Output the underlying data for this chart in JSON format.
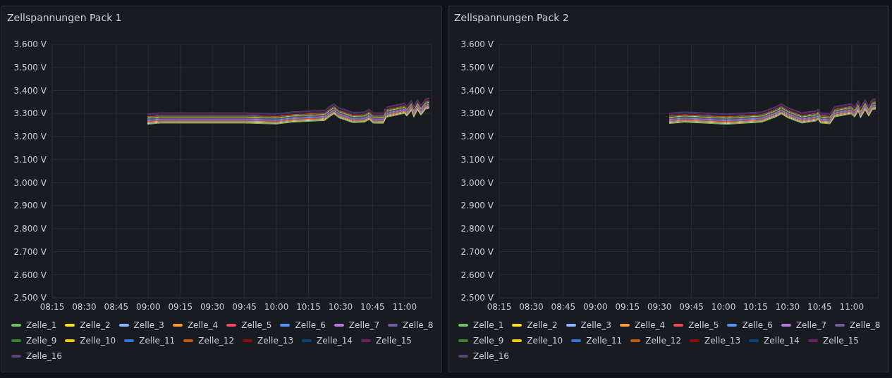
{
  "chart_data": [
    {
      "type": "line",
      "title": "Zellspannungen Pack 1",
      "grid": true,
      "legend": "bottom",
      "marker": "none",
      "line_style": "solid",
      "xlim": [
        8.25,
        11.21
      ],
      "ylim": [
        2.5,
        3.6
      ],
      "xticks": [
        {
          "value": 8.25,
          "label": "08:15"
        },
        {
          "value": 8.5,
          "label": "08:30"
        },
        {
          "value": 8.75,
          "label": "08:45"
        },
        {
          "value": 9,
          "label": "09:00"
        },
        {
          "value": 9.25,
          "label": "09:15"
        },
        {
          "value": 9.5,
          "label": "09:30"
        },
        {
          "value": 9.75,
          "label": "09:45"
        },
        {
          "value": 10,
          "label": "10:00"
        },
        {
          "value": 10.25,
          "label": "10:15"
        },
        {
          "value": 10.5,
          "label": "10:30"
        },
        {
          "value": 10.75,
          "label": "10:45"
        },
        {
          "value": 11,
          "label": "11:00"
        }
      ],
      "yticks": [
        {
          "value": 2.5,
          "label": "2.500 V"
        },
        {
          "value": 2.6,
          "label": "2.600 V"
        },
        {
          "value": 2.7,
          "label": "2.700 V"
        },
        {
          "value": 2.8,
          "label": "2.800 V"
        },
        {
          "value": 2.9,
          "label": "2.900 V"
        },
        {
          "value": 3.0,
          "label": "3.000 V"
        },
        {
          "value": 3.1,
          "label": "3.100 V"
        },
        {
          "value": 3.2,
          "label": "3.200 V"
        },
        {
          "value": 3.3,
          "label": "3.300 V"
        },
        {
          "value": 3.4,
          "label": "3.400 V"
        },
        {
          "value": 3.5,
          "label": "3.500 V"
        },
        {
          "value": 3.6,
          "label": "3.600 V"
        }
      ],
      "x": [
        8.993,
        9.094,
        9.754,
        10.001,
        10.12,
        10.376,
        10.413,
        10.449,
        10.486,
        10.596,
        10.687,
        10.724,
        10.752,
        10.834,
        10.853,
        10.862,
        10.999,
        11.017,
        11.054,
        11.072,
        11.1,
        11.127,
        11.164,
        11.192
      ],
      "series": [
        {
          "name": "Zelle_1",
          "color": "#73bf69",
          "values": [
            3.253,
            3.258,
            3.258,
            3.254,
            3.262,
            3.269,
            3.285,
            3.298,
            3.281,
            3.26,
            3.262,
            3.274,
            3.258,
            3.257,
            3.279,
            3.284,
            3.3,
            3.288,
            3.313,
            3.284,
            3.316,
            3.292,
            3.319,
            3.322
          ]
        },
        {
          "name": "Zelle_2",
          "color": "#fade2a",
          "values": [
            3.256,
            3.261,
            3.261,
            3.257,
            3.265,
            3.272,
            3.288,
            3.301,
            3.284,
            3.263,
            3.265,
            3.277,
            3.261,
            3.26,
            3.282,
            3.287,
            3.303,
            3.291,
            3.316,
            3.287,
            3.319,
            3.295,
            3.322,
            3.325
          ]
        },
        {
          "name": "Zelle_3",
          "color": "#8ab8ff",
          "values": [
            3.259,
            3.264,
            3.264,
            3.26,
            3.268,
            3.275,
            3.291,
            3.304,
            3.287,
            3.266,
            3.268,
            3.28,
            3.264,
            3.263,
            3.285,
            3.29,
            3.306,
            3.294,
            3.319,
            3.29,
            3.322,
            3.298,
            3.325,
            3.328
          ]
        },
        {
          "name": "Zelle_4",
          "color": "#ff9830",
          "values": [
            3.262,
            3.267,
            3.267,
            3.263,
            3.271,
            3.278,
            3.294,
            3.307,
            3.29,
            3.269,
            3.271,
            3.283,
            3.267,
            3.266,
            3.288,
            3.293,
            3.309,
            3.297,
            3.322,
            3.293,
            3.325,
            3.301,
            3.328,
            3.331
          ]
        },
        {
          "name": "Zelle_5",
          "color": "#f2495c",
          "values": [
            3.265,
            3.27,
            3.27,
            3.266,
            3.274,
            3.281,
            3.297,
            3.31,
            3.293,
            3.272,
            3.274,
            3.286,
            3.27,
            3.269,
            3.291,
            3.296,
            3.312,
            3.3,
            3.325,
            3.296,
            3.328,
            3.304,
            3.331,
            3.334
          ]
        },
        {
          "name": "Zelle_6",
          "color": "#5794f2",
          "values": [
            3.268,
            3.273,
            3.273,
            3.269,
            3.277,
            3.284,
            3.3,
            3.313,
            3.296,
            3.275,
            3.277,
            3.289,
            3.273,
            3.272,
            3.294,
            3.299,
            3.315,
            3.303,
            3.328,
            3.299,
            3.331,
            3.307,
            3.334,
            3.337
          ]
        },
        {
          "name": "Zelle_7",
          "color": "#b877d9",
          "values": [
            3.271,
            3.276,
            3.276,
            3.272,
            3.28,
            3.287,
            3.303,
            3.316,
            3.299,
            3.278,
            3.28,
            3.292,
            3.276,
            3.275,
            3.297,
            3.302,
            3.318,
            3.306,
            3.331,
            3.302,
            3.334,
            3.31,
            3.337,
            3.34
          ]
        },
        {
          "name": "Zelle_8",
          "color": "#705da0",
          "values": [
            3.274,
            3.279,
            3.279,
            3.275,
            3.283,
            3.29,
            3.306,
            3.319,
            3.302,
            3.281,
            3.283,
            3.295,
            3.279,
            3.278,
            3.3,
            3.305,
            3.321,
            3.309,
            3.334,
            3.305,
            3.337,
            3.313,
            3.34,
            3.343
          ]
        },
        {
          "name": "Zelle_9",
          "color": "#37872d",
          "values": [
            3.277,
            3.282,
            3.282,
            3.278,
            3.286,
            3.293,
            3.309,
            3.322,
            3.305,
            3.284,
            3.286,
            3.298,
            3.282,
            3.281,
            3.303,
            3.308,
            3.324,
            3.312,
            3.337,
            3.308,
            3.34,
            3.316,
            3.343,
            3.346
          ]
        },
        {
          "name": "Zelle_10",
          "color": "#f2cc0c",
          "values": [
            3.28,
            3.285,
            3.285,
            3.281,
            3.289,
            3.296,
            3.312,
            3.325,
            3.308,
            3.287,
            3.289,
            3.301,
            3.285,
            3.284,
            3.306,
            3.311,
            3.327,
            3.315,
            3.34,
            3.311,
            3.343,
            3.319,
            3.346,
            3.349
          ]
        },
        {
          "name": "Zelle_11",
          "color": "#3274d9",
          "values": [
            3.283,
            3.288,
            3.288,
            3.284,
            3.292,
            3.299,
            3.315,
            3.328,
            3.311,
            3.29,
            3.292,
            3.304,
            3.288,
            3.287,
            3.309,
            3.314,
            3.33,
            3.318,
            3.343,
            3.314,
            3.346,
            3.322,
            3.349,
            3.352
          ]
        },
        {
          "name": "Zelle_12",
          "color": "#c15c17",
          "values": [
            3.286,
            3.291,
            3.291,
            3.287,
            3.295,
            3.302,
            3.318,
            3.331,
            3.314,
            3.293,
            3.295,
            3.307,
            3.291,
            3.29,
            3.312,
            3.317,
            3.333,
            3.321,
            3.346,
            3.317,
            3.349,
            3.325,
            3.352,
            3.355
          ]
        },
        {
          "name": "Zelle_13",
          "color": "#890f02",
          "values": [
            3.289,
            3.294,
            3.294,
            3.29,
            3.298,
            3.305,
            3.321,
            3.334,
            3.317,
            3.296,
            3.298,
            3.31,
            3.294,
            3.293,
            3.315,
            3.32,
            3.336,
            3.324,
            3.349,
            3.32,
            3.352,
            3.328,
            3.355,
            3.358
          ]
        },
        {
          "name": "Zelle_14",
          "color": "#0a437c",
          "values": [
            3.292,
            3.297,
            3.297,
            3.293,
            3.301,
            3.308,
            3.324,
            3.337,
            3.32,
            3.299,
            3.301,
            3.313,
            3.297,
            3.296,
            3.318,
            3.323,
            3.339,
            3.327,
            3.352,
            3.323,
            3.355,
            3.331,
            3.358,
            3.361
          ]
        },
        {
          "name": "Zelle_15",
          "color": "#6d1f62",
          "values": [
            3.295,
            3.3,
            3.3,
            3.296,
            3.304,
            3.311,
            3.327,
            3.34,
            3.323,
            3.302,
            3.304,
            3.316,
            3.3,
            3.299,
            3.321,
            3.326,
            3.342,
            3.33,
            3.355,
            3.326,
            3.358,
            3.334,
            3.361,
            3.364
          ]
        },
        {
          "name": "Zelle_16",
          "color": "#584477",
          "values": [
            3.298,
            3.303,
            3.303,
            3.299,
            3.307,
            3.314,
            3.33,
            3.343,
            3.326,
            3.305,
            3.307,
            3.319,
            3.303,
            3.302,
            3.324,
            3.329,
            3.345,
            3.333,
            3.358,
            3.329,
            3.361,
            3.337,
            3.364,
            3.367
          ]
        }
      ]
    },
    {
      "type": "line",
      "title": "Zellspannungen Pack 2",
      "grid": true,
      "legend": "bottom",
      "marker": "none",
      "line_style": "solid",
      "xlim": [
        8.25,
        11.21
      ],
      "ylim": [
        2.5,
        3.6
      ],
      "xticks": [
        {
          "value": 8.25,
          "label": "08:15"
        },
        {
          "value": 8.5,
          "label": "08:30"
        },
        {
          "value": 8.75,
          "label": "08:45"
        },
        {
          "value": 9,
          "label": "09:00"
        },
        {
          "value": 9.25,
          "label": "09:15"
        },
        {
          "value": 9.5,
          "label": "09:30"
        },
        {
          "value": 9.75,
          "label": "09:45"
        },
        {
          "value": 10,
          "label": "10:00"
        },
        {
          "value": 10.25,
          "label": "10:15"
        },
        {
          "value": 10.5,
          "label": "10:30"
        },
        {
          "value": 10.75,
          "label": "10:45"
        },
        {
          "value": 11,
          "label": "11:00"
        }
      ],
      "yticks": [
        {
          "value": 2.5,
          "label": "2.500 V"
        },
        {
          "value": 2.6,
          "label": "2.600 V"
        },
        {
          "value": 2.7,
          "label": "2.700 V"
        },
        {
          "value": 2.8,
          "label": "2.800 V"
        },
        {
          "value": 2.9,
          "label": "2.900 V"
        },
        {
          "value": 3.0,
          "label": "3.000 V"
        },
        {
          "value": 3.1,
          "label": "3.100 V"
        },
        {
          "value": 3.2,
          "label": "3.200 V"
        },
        {
          "value": 3.3,
          "label": "3.300 V"
        },
        {
          "value": 3.4,
          "label": "3.400 V"
        },
        {
          "value": 3.5,
          "label": "3.500 V"
        },
        {
          "value": 3.6,
          "label": "3.600 V"
        }
      ],
      "x": [
        9.576,
        9.695,
        10.025,
        10.299,
        10.409,
        10.452,
        10.501,
        10.611,
        10.721,
        10.739,
        10.757,
        10.831,
        10.867,
        10.996,
        11.023,
        11.051,
        11.069,
        11.105,
        11.133,
        11.16,
        11.188
      ],
      "series": [
        {
          "name": "Zelle_1",
          "color": "#73bf69",
          "values": [
            3.256,
            3.262,
            3.253,
            3.262,
            3.285,
            3.298,
            3.281,
            3.258,
            3.267,
            3.274,
            3.258,
            3.255,
            3.285,
            3.298,
            3.284,
            3.311,
            3.281,
            3.316,
            3.288,
            3.316,
            3.319
          ]
        },
        {
          "name": "Zelle_2",
          "color": "#fade2a",
          "values": [
            3.259,
            3.265,
            3.256,
            3.265,
            3.288,
            3.301,
            3.284,
            3.261,
            3.27,
            3.277,
            3.261,
            3.258,
            3.288,
            3.301,
            3.287,
            3.314,
            3.284,
            3.319,
            3.291,
            3.319,
            3.322
          ]
        },
        {
          "name": "Zelle_3",
          "color": "#8ab8ff",
          "values": [
            3.262,
            3.268,
            3.259,
            3.268,
            3.291,
            3.304,
            3.287,
            3.264,
            3.273,
            3.28,
            3.264,
            3.261,
            3.291,
            3.304,
            3.29,
            3.317,
            3.287,
            3.322,
            3.294,
            3.322,
            3.325
          ]
        },
        {
          "name": "Zelle_4",
          "color": "#ff9830",
          "values": [
            3.265,
            3.271,
            3.262,
            3.271,
            3.294,
            3.307,
            3.29,
            3.267,
            3.276,
            3.283,
            3.267,
            3.264,
            3.294,
            3.307,
            3.293,
            3.32,
            3.29,
            3.325,
            3.297,
            3.325,
            3.328
          ]
        },
        {
          "name": "Zelle_5",
          "color": "#f2495c",
          "values": [
            3.268,
            3.274,
            3.265,
            3.274,
            3.297,
            3.31,
            3.293,
            3.27,
            3.279,
            3.286,
            3.27,
            3.267,
            3.297,
            3.31,
            3.296,
            3.323,
            3.293,
            3.328,
            3.3,
            3.328,
            3.331
          ]
        },
        {
          "name": "Zelle_6",
          "color": "#5794f2",
          "values": [
            3.271,
            3.277,
            3.268,
            3.277,
            3.3,
            3.313,
            3.296,
            3.273,
            3.282,
            3.289,
            3.273,
            3.27,
            3.3,
            3.313,
            3.299,
            3.326,
            3.296,
            3.331,
            3.303,
            3.331,
            3.334
          ]
        },
        {
          "name": "Zelle_7",
          "color": "#b877d9",
          "values": [
            3.274,
            3.28,
            3.271,
            3.28,
            3.303,
            3.316,
            3.299,
            3.276,
            3.285,
            3.292,
            3.276,
            3.273,
            3.303,
            3.316,
            3.302,
            3.329,
            3.299,
            3.334,
            3.306,
            3.334,
            3.337
          ]
        },
        {
          "name": "Zelle_8",
          "color": "#705da0",
          "values": [
            3.277,
            3.283,
            3.274,
            3.283,
            3.306,
            3.319,
            3.302,
            3.279,
            3.288,
            3.295,
            3.279,
            3.276,
            3.306,
            3.319,
            3.305,
            3.332,
            3.302,
            3.337,
            3.309,
            3.337,
            3.34
          ]
        },
        {
          "name": "Zelle_9",
          "color": "#37872d",
          "values": [
            3.28,
            3.286,
            3.277,
            3.286,
            3.309,
            3.322,
            3.305,
            3.282,
            3.291,
            3.298,
            3.282,
            3.279,
            3.309,
            3.322,
            3.308,
            3.335,
            3.305,
            3.34,
            3.312,
            3.34,
            3.343
          ]
        },
        {
          "name": "Zelle_10",
          "color": "#f2cc0c",
          "values": [
            3.283,
            3.289,
            3.28,
            3.289,
            3.312,
            3.325,
            3.308,
            3.285,
            3.294,
            3.301,
            3.285,
            3.282,
            3.312,
            3.325,
            3.311,
            3.338,
            3.308,
            3.343,
            3.315,
            3.343,
            3.346
          ]
        },
        {
          "name": "Zelle_11",
          "color": "#3274d9",
          "values": [
            3.286,
            3.292,
            3.283,
            3.292,
            3.315,
            3.328,
            3.311,
            3.288,
            3.297,
            3.304,
            3.288,
            3.285,
            3.315,
            3.328,
            3.314,
            3.341,
            3.311,
            3.346,
            3.318,
            3.346,
            3.349
          ]
        },
        {
          "name": "Zelle_12",
          "color": "#c15c17",
          "values": [
            3.289,
            3.295,
            3.286,
            3.295,
            3.318,
            3.331,
            3.314,
            3.291,
            3.3,
            3.307,
            3.291,
            3.288,
            3.318,
            3.331,
            3.317,
            3.344,
            3.314,
            3.349,
            3.321,
            3.349,
            3.352
          ]
        },
        {
          "name": "Zelle_13",
          "color": "#890f02",
          "values": [
            3.292,
            3.298,
            3.289,
            3.298,
            3.321,
            3.334,
            3.317,
            3.294,
            3.303,
            3.31,
            3.294,
            3.291,
            3.321,
            3.334,
            3.32,
            3.347,
            3.317,
            3.352,
            3.324,
            3.352,
            3.355
          ]
        },
        {
          "name": "Zelle_14",
          "color": "#0a437c",
          "values": [
            3.295,
            3.301,
            3.292,
            3.301,
            3.324,
            3.337,
            3.32,
            3.297,
            3.306,
            3.313,
            3.297,
            3.294,
            3.324,
            3.337,
            3.323,
            3.35,
            3.32,
            3.355,
            3.327,
            3.355,
            3.358
          ]
        },
        {
          "name": "Zelle_15",
          "color": "#6d1f62",
          "values": [
            3.298,
            3.304,
            3.295,
            3.304,
            3.327,
            3.34,
            3.323,
            3.3,
            3.309,
            3.316,
            3.3,
            3.297,
            3.327,
            3.34,
            3.326,
            3.353,
            3.323,
            3.358,
            3.33,
            3.358,
            3.361
          ]
        },
        {
          "name": "Zelle_16",
          "color": "#584477",
          "values": [
            3.301,
            3.307,
            3.298,
            3.307,
            3.33,
            3.343,
            3.326,
            3.303,
            3.312,
            3.319,
            3.303,
            3.3,
            3.33,
            3.343,
            3.329,
            3.356,
            3.326,
            3.361,
            3.333,
            3.361,
            3.364
          ]
        }
      ]
    }
  ]
}
